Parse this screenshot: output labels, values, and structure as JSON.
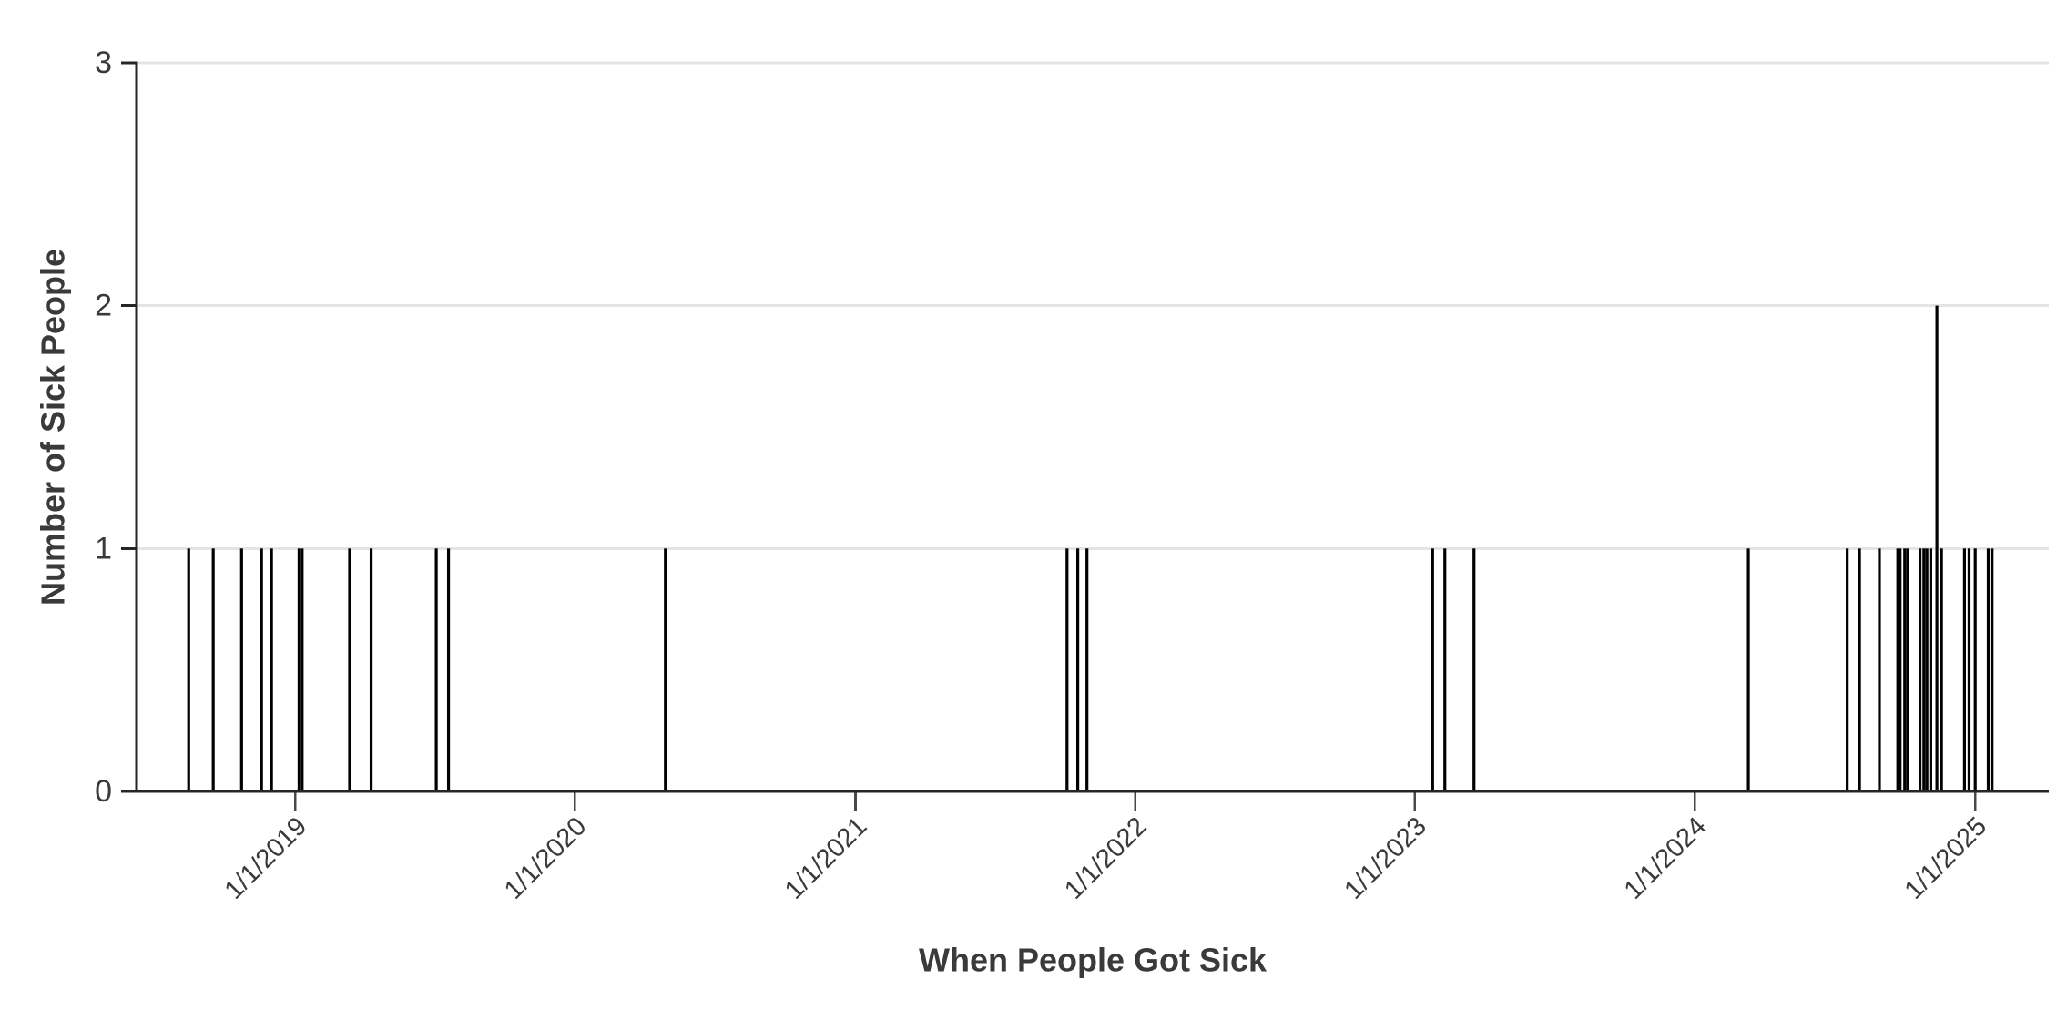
{
  "colors": {
    "bar": "#000000",
    "text": "#3a3a3a",
    "axis": "#262626",
    "grid": "#e4e4e4",
    "tick": "#4a4a4a",
    "background": "#ffffff"
  },
  "chart_data": {
    "type": "bar",
    "title": "",
    "xlabel": "When People Got Sick",
    "ylabel": "Number of Sick People",
    "x_type": "date",
    "dates": [
      "2018-08-15",
      "2018-09-16",
      "2018-10-23",
      "2018-11-18",
      "2018-12-01",
      "2019-01-06",
      "2019-01-10",
      "2019-03-13",
      "2019-04-10",
      "2019-07-04",
      "2019-07-20",
      "2020-04-28",
      "2021-10-04",
      "2021-10-18",
      "2021-10-30",
      "2023-01-24",
      "2023-02-09",
      "2023-03-19",
      "2024-03-11",
      "2024-07-18",
      "2024-08-03",
      "2024-08-29",
      "2024-09-22",
      "2024-09-25",
      "2024-10-01",
      "2024-10-05",
      "2024-10-21",
      "2024-10-26",
      "2024-10-30",
      "2024-11-04",
      "2024-11-12",
      "2024-11-18",
      "2024-12-18",
      "2024-12-24",
      "2025-01-01",
      "2025-01-18",
      "2025-01-23"
    ],
    "counts": [
      1,
      1,
      1,
      1,
      1,
      1,
      1,
      1,
      1,
      1,
      1,
      1,
      1,
      1,
      1,
      1,
      1,
      1,
      1,
      1,
      1,
      1,
      1,
      1,
      1,
      1,
      1,
      1,
      1,
      1,
      2,
      1,
      1,
      1,
      1,
      1,
      1
    ],
    "total_cases": 38,
    "ylim": [
      0,
      3
    ],
    "y_ticks": [
      0,
      1,
      2,
      3
    ],
    "y_tick_labels": [
      "0",
      "1",
      "2",
      "3"
    ],
    "x_tick_dates": [
      "2019-01-01",
      "2020-01-01",
      "2021-01-01",
      "2022-01-01",
      "2023-01-01",
      "2024-01-01",
      "2025-01-01"
    ],
    "x_tick_labels": [
      "1/1/2019",
      "1/1/2020",
      "1/1/2021",
      "1/1/2022",
      "1/1/2023",
      "1/1/2024",
      "1/1/2025"
    ],
    "x_tick_angle_deg": -45,
    "x_domain": [
      "2018-06-08",
      "2025-04-07"
    ],
    "grid": "horizontal",
    "legend": "none"
  }
}
